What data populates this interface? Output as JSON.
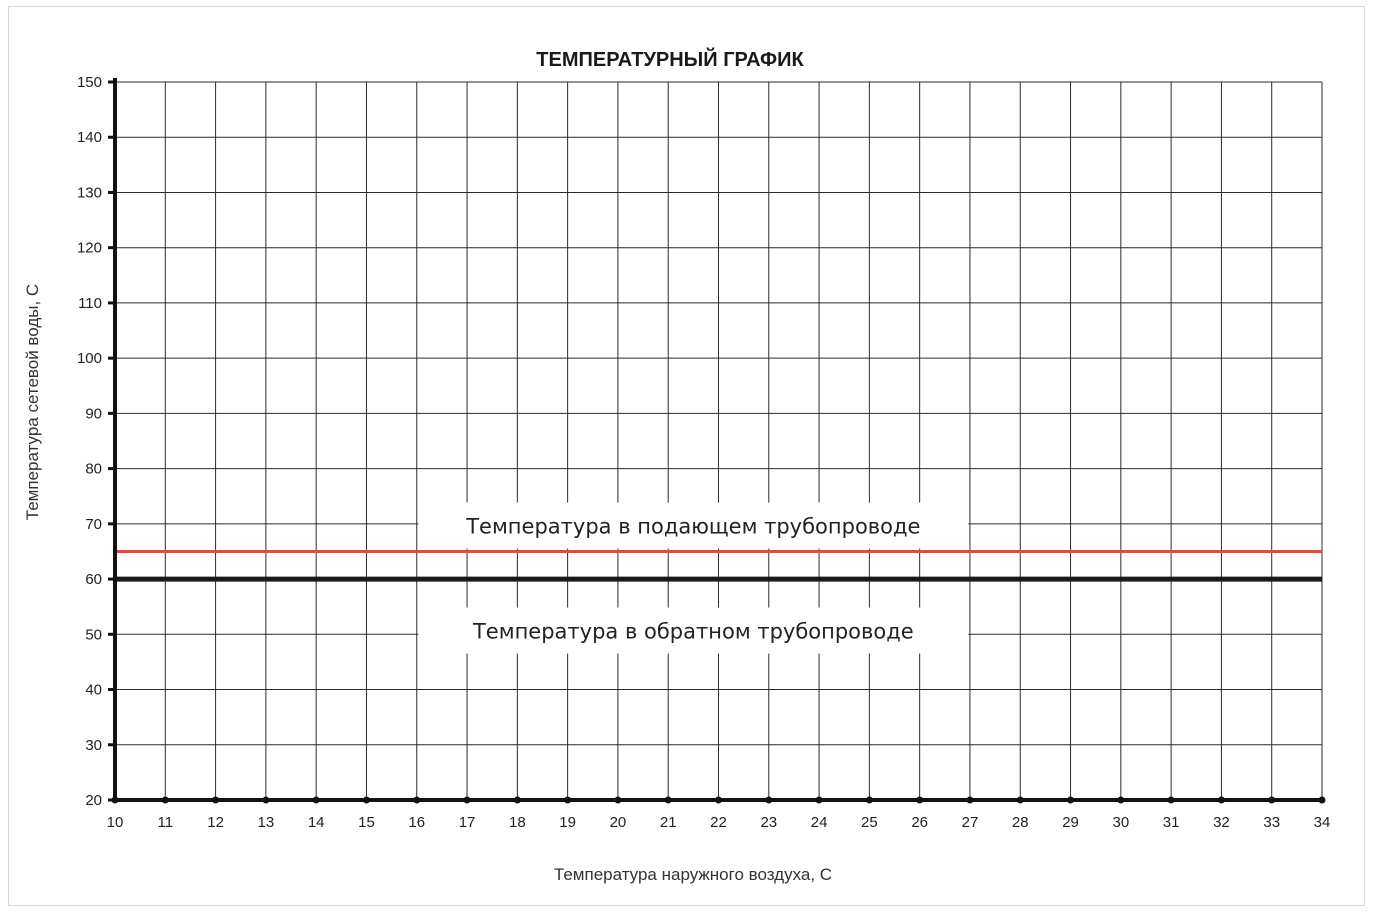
{
  "chart_data": {
    "type": "line",
    "title": "ТЕМПЕРАТУРНЫЙ ГРАФИК",
    "xlabel": "Температура наружного воздуха, С",
    "ylabel": "Температура сетевой воды, С",
    "xlim": [
      10,
      34
    ],
    "ylim": [
      20,
      150
    ],
    "x_ticks": [
      10,
      11,
      12,
      13,
      14,
      15,
      16,
      17,
      18,
      19,
      20,
      21,
      22,
      23,
      24,
      25,
      26,
      27,
      28,
      29,
      30,
      31,
      32,
      33,
      34
    ],
    "y_ticks": [
      20,
      30,
      40,
      50,
      60,
      70,
      80,
      90,
      100,
      110,
      120,
      130,
      140,
      150
    ],
    "grid": true,
    "series": [
      {
        "name": "Температура в подающем трубопроводе",
        "color": "#e8473b",
        "x": [
          10,
          34
        ],
        "y": [
          65,
          65
        ]
      },
      {
        "name": "Температура в обратном трубопроводе",
        "color": "#1a1a1a",
        "x": [
          10,
          34
        ],
        "y": [
          60,
          60
        ]
      }
    ],
    "annotations": [
      {
        "text": "Температура в подающем трубопроводе",
        "anchor_x": 21.5,
        "anchor_y": 69.5
      },
      {
        "text": "Температура в обратном трубопроводе",
        "anchor_x": 21.5,
        "anchor_y": 50.5
      }
    ]
  }
}
